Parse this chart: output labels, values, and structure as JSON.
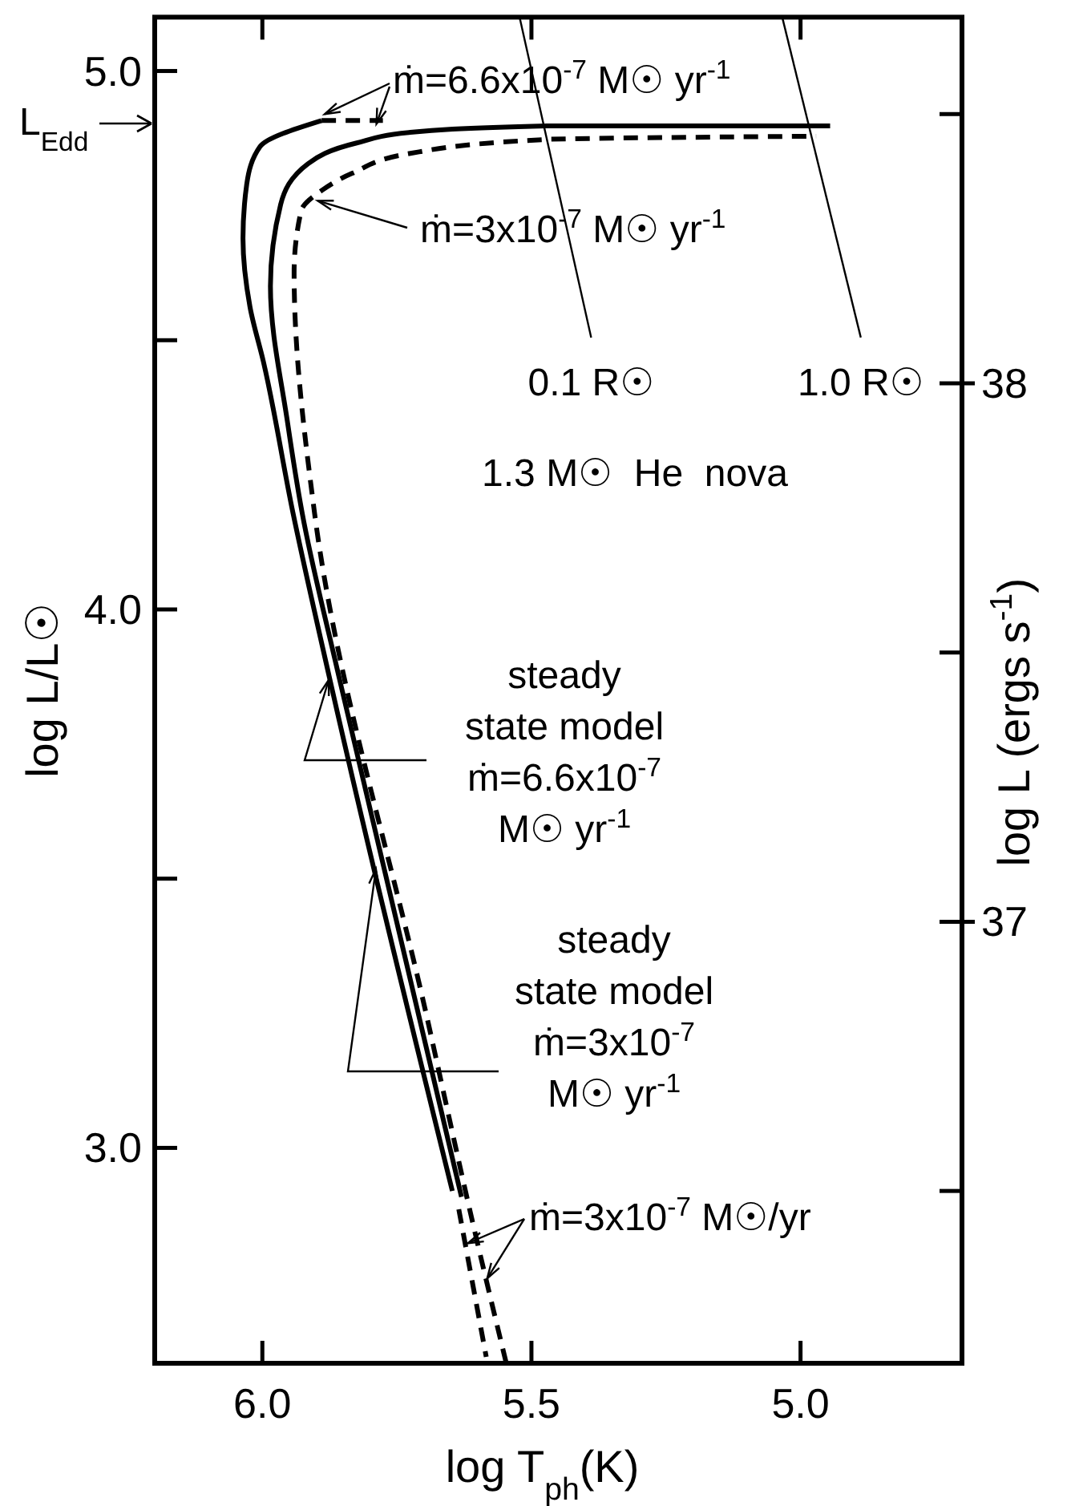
{
  "chart_data": {
    "type": "line",
    "title": "1.3 M☉  He  nova",
    "xlabel": "log T$_{ph}$(K)",
    "ylabel": "log L/L☉",
    "y2label": "log L (ergs s$^{-1}$)",
    "xlim": [
      6.2,
      4.7
    ],
    "xticks": [
      {
        "value": 6.0,
        "label": "6.0"
      },
      {
        "value": 5.5,
        "label": "5.5"
      },
      {
        "value": 5.0,
        "label": "5.0"
      }
    ],
    "ylim": [
      2.6,
      5.1
    ],
    "yticks": [
      {
        "value": 3.0,
        "label": "3.0"
      },
      {
        "value": 3.5,
        "label": null
      },
      {
        "value": 4.0,
        "label": "4.0"
      },
      {
        "value": 4.5,
        "label": null
      },
      {
        "value": 5.0,
        "label": "5.0"
      }
    ],
    "y2lim": [
      36.18,
      38.68
    ],
    "y2ticks": [
      {
        "value": 36.5,
        "label": null
      },
      37,
      {
        "value": 37.5,
        "label": null
      },
      38,
      {
        "value": 38.5,
        "label": null
      }
    ],
    "series": [
      {
        "color": "#000000",
        "line_style": "solid",
        "x": [
          5.89,
          6.004,
          6.029,
          6.036,
          6.023,
          5.998,
          5.943,
          5.875,
          5.647
        ],
        "values": [
          4.908,
          4.86,
          4.79,
          4.689,
          4.562,
          4.46,
          4.179,
          3.872,
          2.92
        ]
      },
      {
        "color": "#000000",
        "line_style": "solid",
        "x": [
          5.63,
          5.857,
          5.926,
          5.953,
          5.985,
          5.966,
          5.915,
          5.826,
          5.725,
          5.471,
          4.945
        ],
        "values": [
          2.909,
          3.872,
          4.179,
          4.346,
          4.6,
          4.752,
          4.828,
          4.866,
          4.886,
          4.898,
          4.898
        ]
      },
      {
        "color": "#000000",
        "line_style": "dashed",
        "x": [
          5.547,
          5.607,
          5.692,
          5.903,
          5.941,
          5.928,
          5.89,
          5.833,
          5.725,
          5.471,
          4.971
        ],
        "values": [
          2.601,
          2.852,
          3.233,
          4.179,
          4.625,
          4.74,
          4.778,
          4.81,
          4.847,
          4.873,
          4.879
        ]
      },
      {
        "color": "#000000",
        "line_style": "dashed",
        "x": [
          5.89,
          5.776
        ],
        "values": [
          4.908,
          4.908
        ]
      },
      {
        "color": "#000000",
        "line_style": "dashed",
        "x": [
          5.635,
          5.584
        ],
        "values": [
          2.886,
          2.612
        ]
      },
      {
        "name": "0.1 R☉",
        "color": "#000000",
        "line_style": "solid",
        "x": [
          5.522,
          5.389
        ],
        "values": [
          5.1,
          4.505
        ]
      },
      {
        "name": "1.0 R☉",
        "color": "#000000",
        "line_style": "solid",
        "x": [
          5.034,
          4.888
        ],
        "values": [
          5.1,
          4.505
        ]
      }
    ],
    "annotations": [
      {
        "text": "ṁ=6.6x10$^{-7}$ M☉ yr$^{-1}$",
        "x": 5.89,
        "y": 4.908
      },
      {
        "text": "ṁ=3x10$^{-7}$ M☉ yr$^{-1}$",
        "x": 5.897,
        "y": 4.759
      },
      "steady\nstate model\nṁ=6.6x10$^{-7}$\nM☉ yr$^{-1}$",
      {
        "text": "steady\nstate model\nṁ=3x10$^{-7}$\nM☉ yr$^{-1}$",
        "x": 5.789,
        "y": 3.518
      },
      {
        "text": "ṁ=3x10$^{-7}$ M☉/yr",
        "x": 5.618,
        "y": 2.823
      },
      "L$_{Edd}$"
    ]
  }
}
